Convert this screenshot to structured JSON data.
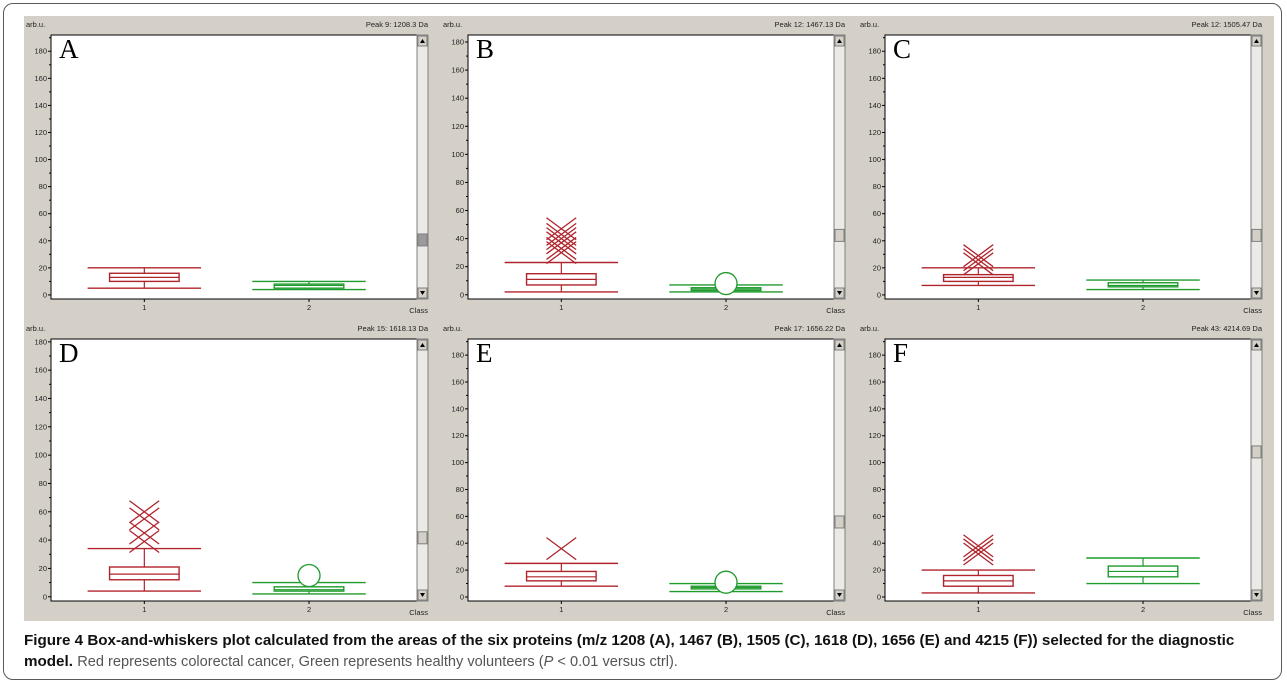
{
  "figure": {
    "label": "Figure 4",
    "title": "Box-and-whiskers plot calculated from the areas of the six proteins (m/z 1208 (A), 1467 (B), 1505 (C), 1618 (D), 1656 (E) and 4215 (F)) selected for the diagnostic model.",
    "description_pre": "Red represents colorectal cancer, Green represents healthy volunteers (",
    "description_p": "P",
    "description_post": " < 0.01 versus ctrl)."
  },
  "colors": {
    "class1": "#b0242c",
    "class2": "#1f9a2c",
    "plot_bg": "#ffffff",
    "panel_bg": "#d4d0c8"
  },
  "chart_data": [
    {
      "type": "box",
      "panel": "A",
      "peak_label": "Peak 9: 1208.3 Da",
      "ylabel": "arb.u.",
      "xlabel": "Class",
      "ylim": [
        -3,
        192
      ],
      "yticks": [
        0,
        20,
        40,
        60,
        80,
        100,
        120,
        140,
        160,
        180
      ],
      "categories": [
        "1",
        "2"
      ],
      "boxes": [
        {
          "class": "1",
          "whisker_low": 5,
          "q1": 10,
          "median": 13,
          "q3": 16,
          "whisker_high": 20,
          "outliers_x": [],
          "outliers_o": []
        },
        {
          "class": "2",
          "whisker_low": 4,
          "q1": 5,
          "median": 7,
          "q3": 8,
          "whisker_high": 10,
          "outliers_x": [],
          "outliers_o": []
        }
      ],
      "scroll_thumb": 0.82
    },
    {
      "type": "box",
      "panel": "B",
      "peak_label": "Peak 12: 1467.13 Da",
      "ylabel": "arb.u.",
      "xlabel": "Class",
      "ylim": [
        -3,
        185
      ],
      "yticks": [
        0,
        20,
        40,
        60,
        80,
        100,
        120,
        140,
        160,
        180
      ],
      "categories": [
        "1",
        "2"
      ],
      "boxes": [
        {
          "class": "1",
          "whisker_low": 2,
          "q1": 7,
          "median": 11,
          "q3": 15,
          "whisker_high": 23,
          "outliers_x": [
            30,
            33,
            37,
            40,
            43,
            47
          ],
          "outliers_o": []
        },
        {
          "class": "2",
          "whisker_low": 2,
          "q1": 3,
          "median": 4,
          "q3": 5,
          "whisker_high": 7,
          "outliers_x": [],
          "outliers_o": [
            8
          ]
        }
      ],
      "scroll_thumb": 0.8
    },
    {
      "type": "box",
      "panel": "C",
      "peak_label": "Peak 12: 1505.47 Da",
      "ylabel": "arb.u.",
      "xlabel": "Class",
      "ylim": [
        -3,
        192
      ],
      "yticks": [
        0,
        20,
        40,
        60,
        80,
        100,
        120,
        140,
        160,
        180
      ],
      "categories": [
        "1",
        "2"
      ],
      "boxes": [
        {
          "class": "1",
          "whisker_low": 7,
          "q1": 10,
          "median": 13,
          "q3": 15,
          "whisker_high": 20,
          "outliers_x": [
            23,
            26,
            29
          ],
          "outliers_o": []
        },
        {
          "class": "2",
          "whisker_low": 4,
          "q1": 6,
          "median": 7,
          "q3": 9,
          "whisker_high": 11,
          "outliers_x": [],
          "outliers_o": []
        }
      ],
      "scroll_thumb": 0.8
    },
    {
      "type": "box",
      "panel": "D",
      "peak_label": "Peak 15: 1618.13 Da",
      "ylabel": "arb.u.",
      "xlabel": "Class",
      "ylim": [
        -3,
        182
      ],
      "yticks": [
        0,
        20,
        40,
        60,
        80,
        100,
        120,
        140,
        160,
        180
      ],
      "categories": [
        "1",
        "2"
      ],
      "boxes": [
        {
          "class": "1",
          "whisker_low": 4,
          "q1": 12,
          "median": 16,
          "q3": 21,
          "whisker_high": 34,
          "outliers_x": [
            39,
            45,
            55,
            60
          ],
          "outliers_o": []
        },
        {
          "class": "2",
          "whisker_low": 2,
          "q1": 4,
          "median": 5,
          "q3": 7,
          "whisker_high": 10,
          "outliers_x": [],
          "outliers_o": [
            15
          ]
        }
      ],
      "scroll_thumb": 0.8
    },
    {
      "type": "box",
      "panel": "E",
      "peak_label": "Peak 17: 1656.22 Da",
      "ylabel": "arb.u.",
      "xlabel": "Class",
      "ylim": [
        -3,
        192
      ],
      "yticks": [
        0,
        20,
        40,
        60,
        80,
        100,
        120,
        140,
        160,
        180
      ],
      "categories": [
        "1",
        "2"
      ],
      "boxes": [
        {
          "class": "1",
          "whisker_low": 8,
          "q1": 12,
          "median": 15,
          "q3": 19,
          "whisker_high": 25,
          "outliers_x": [
            36
          ],
          "outliers_o": []
        },
        {
          "class": "2",
          "whisker_low": 4,
          "q1": 6,
          "median": 7,
          "q3": 8,
          "whisker_high": 10,
          "outliers_x": [],
          "outliers_o": [
            11
          ]
        }
      ],
      "scroll_thumb": 0.73
    },
    {
      "type": "box",
      "panel": "F",
      "peak_label": "Peak 43: 4214.69 Da",
      "ylabel": "arb.u.",
      "xlabel": "Class",
      "ylim": [
        -3,
        192
      ],
      "yticks": [
        0,
        20,
        40,
        60,
        80,
        100,
        120,
        140,
        160,
        180
      ],
      "categories": [
        "1",
        "2"
      ],
      "boxes": [
        {
          "class": "1",
          "whisker_low": 3,
          "q1": 8,
          "median": 12,
          "q3": 16,
          "whisker_high": 20,
          "outliers_x": [
            32,
            35,
            38
          ],
          "outliers_o": []
        },
        {
          "class": "2",
          "whisker_low": 10,
          "q1": 15,
          "median": 19,
          "q3": 23,
          "whisker_high": 29,
          "outliers_x": [],
          "outliers_o": []
        }
      ],
      "scroll_thumb": 0.42
    }
  ]
}
